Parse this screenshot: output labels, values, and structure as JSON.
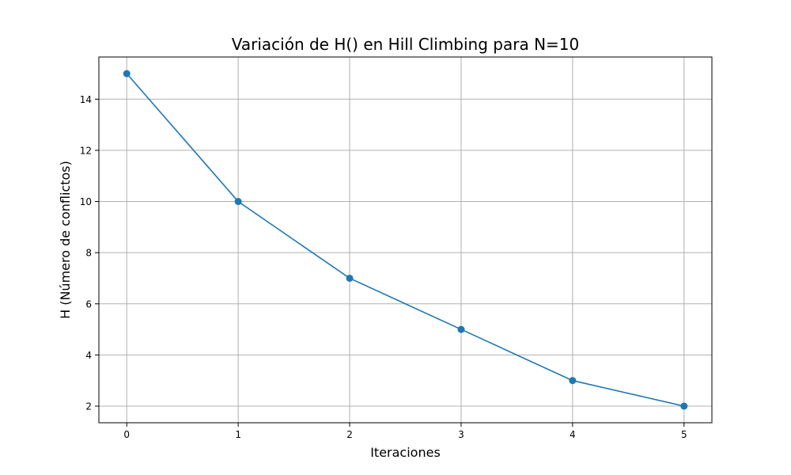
{
  "chart_data": {
    "type": "line",
    "title": "Variación de H() en Hill Climbing para N=10",
    "xlabel": "Iteraciones",
    "ylabel": "H (Número de conflictos)",
    "x": [
      0,
      1,
      2,
      3,
      4,
      5
    ],
    "series": [
      {
        "values": [
          15,
          10,
          7,
          5,
          3,
          2
        ]
      }
    ],
    "xlim": [
      -0.25,
      5.25
    ],
    "ylim": [
      1.35,
      15.65
    ],
    "xticks": [
      0,
      1,
      2,
      3,
      4,
      5
    ],
    "yticks": [
      2,
      4,
      6,
      8,
      10,
      12,
      14
    ],
    "grid": true,
    "marker": "circle",
    "line_color": "#1f77b4"
  }
}
